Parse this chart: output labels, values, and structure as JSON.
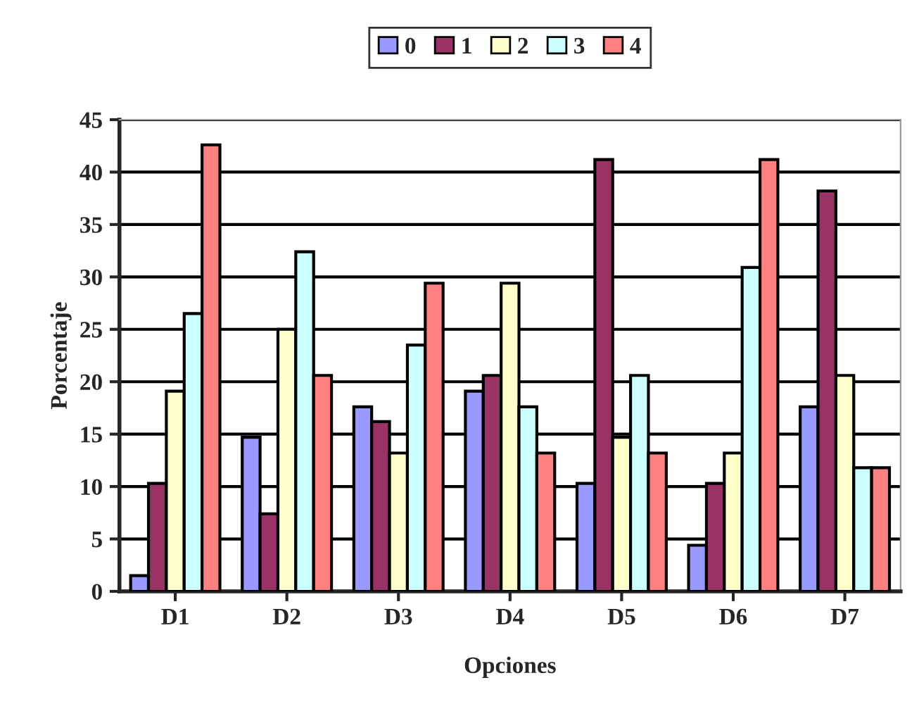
{
  "chart_data": {
    "type": "bar",
    "xlabel": "Opciones",
    "ylabel": "Porcentaje",
    "categories": [
      "D1",
      "D2",
      "D3",
      "D4",
      "D5",
      "D6",
      "D7"
    ],
    "series": [
      {
        "name": "0",
        "color": "#9999ff",
        "values": [
          1.5,
          14.7,
          17.6,
          19.1,
          10.3,
          4.4,
          17.6
        ]
      },
      {
        "name": "1",
        "color": "#993366",
        "values": [
          10.3,
          7.4,
          16.2,
          20.6,
          41.2,
          10.3,
          38.2
        ]
      },
      {
        "name": "2",
        "color": "#ffffcc",
        "values": [
          19.1,
          25,
          13.2,
          29.4,
          14.7,
          13.2,
          20.6
        ]
      },
      {
        "name": "3",
        "color": "#ccffff",
        "values": [
          26.5,
          32.4,
          23.5,
          17.6,
          20.6,
          30.9,
          11.8
        ]
      },
      {
        "name": "4",
        "color": "#ff8080",
        "values": [
          42.6,
          20.6,
          29.4,
          13.2,
          13.2,
          41.2,
          11.8
        ]
      }
    ],
    "ylim": [
      0,
      45
    ],
    "yticks": [
      0,
      5,
      10,
      15,
      20,
      25,
      30,
      35,
      40,
      45
    ],
    "grid": "y",
    "legend": "top"
  }
}
